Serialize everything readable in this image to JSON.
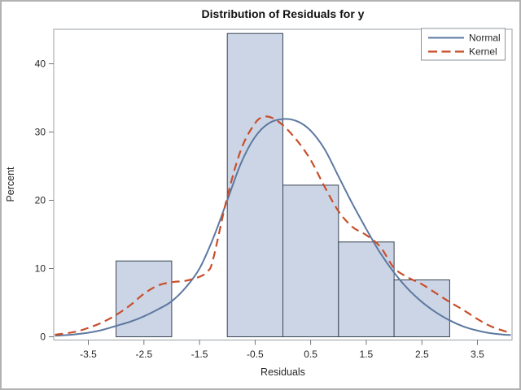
{
  "chart_data": {
    "type": "histogram",
    "title": "Distribution of Residuals for y",
    "xlabel": "Residuals",
    "ylabel": "Percent",
    "xlim": [
      -4.12,
      4.12
    ],
    "ylim": [
      0,
      45
    ],
    "grid": false,
    "legend_position": "top-right-inside",
    "x_tick_values": [
      -3.5,
      -2.5,
      -1.5,
      -0.5,
      0.5,
      1.5,
      2.5,
      3.5
    ],
    "x_tick_labels": [
      "-3.5",
      "-2.5",
      "-1.5",
      "-0.5",
      "0.5",
      "1.5",
      "2.5",
      "3.5"
    ],
    "y_tick_values": [
      0,
      10,
      20,
      30,
      40
    ],
    "y_tick_labels": [
      "0",
      "10",
      "20",
      "30",
      "40"
    ],
    "histogram_bins": [
      {
        "x0": -3,
        "x1": -2,
        "percent": 11.11
      },
      {
        "x0": -2,
        "x1": -1,
        "percent": 0
      },
      {
        "x0": -1,
        "x1": 0,
        "percent": 44.44
      },
      {
        "x0": 0,
        "x1": 1,
        "percent": 22.22
      },
      {
        "x0": 1,
        "x1": 2,
        "percent": 13.89
      },
      {
        "x0": 2,
        "x1": 3,
        "percent": 8.33
      }
    ],
    "series": [
      {
        "name": "Normal",
        "style": "solid",
        "color": "#5d78a0",
        "points": [
          [
            -4.1,
            0.15
          ],
          [
            -3.75,
            0.35
          ],
          [
            -3.5,
            0.6
          ],
          [
            -3.25,
            1.0
          ],
          [
            -3.0,
            1.6
          ],
          [
            -2.75,
            2.2
          ],
          [
            -2.5,
            3.0
          ],
          [
            -2.25,
            4.0
          ],
          [
            -2.0,
            5.2
          ],
          [
            -1.75,
            7.2
          ],
          [
            -1.5,
            10.0
          ],
          [
            -1.25,
            14.5
          ],
          [
            -1.0,
            20.0
          ],
          [
            -0.75,
            25.5
          ],
          [
            -0.5,
            29.3
          ],
          [
            -0.25,
            31.3
          ],
          [
            0,
            31.9
          ],
          [
            0.25,
            31.6
          ],
          [
            0.5,
            30.2
          ],
          [
            0.75,
            27.5
          ],
          [
            1.0,
            23.5
          ],
          [
            1.25,
            19.5
          ],
          [
            1.5,
            15.8
          ],
          [
            1.75,
            12.3
          ],
          [
            2.0,
            9.4
          ],
          [
            2.25,
            7.0
          ],
          [
            2.5,
            5.1
          ],
          [
            2.75,
            3.6
          ],
          [
            3.0,
            2.4
          ],
          [
            3.25,
            1.5
          ],
          [
            3.5,
            0.9
          ],
          [
            3.75,
            0.5
          ],
          [
            4.0,
            0.3
          ],
          [
            4.1,
            0.25
          ]
        ]
      },
      {
        "name": "Kernel",
        "style": "dashed",
        "color": "#c94e2b",
        "points": [
          [
            -4.1,
            0.3
          ],
          [
            -3.75,
            0.7
          ],
          [
            -3.5,
            1.3
          ],
          [
            -3.25,
            2.1
          ],
          [
            -3.0,
            3.2
          ],
          [
            -2.75,
            4.6
          ],
          [
            -2.5,
            6.3
          ],
          [
            -2.25,
            7.5
          ],
          [
            -2.0,
            8.0
          ],
          [
            -1.75,
            8.2
          ],
          [
            -1.5,
            8.8
          ],
          [
            -1.35,
            9.6
          ],
          [
            -1.25,
            11.5
          ],
          [
            -1.0,
            20.5
          ],
          [
            -0.75,
            27.5
          ],
          [
            -0.5,
            31.3
          ],
          [
            -0.35,
            32.2
          ],
          [
            -0.2,
            32.1
          ],
          [
            0,
            31.0
          ],
          [
            0.25,
            28.8
          ],
          [
            0.5,
            25.9
          ],
          [
            0.75,
            22.0
          ],
          [
            1.0,
            18.4
          ],
          [
            1.25,
            16.1
          ],
          [
            1.5,
            14.9
          ],
          [
            1.75,
            13.2
          ],
          [
            2.0,
            10.1
          ],
          [
            2.25,
            8.7
          ],
          [
            2.5,
            7.7
          ],
          [
            2.75,
            6.4
          ],
          [
            3.0,
            5.1
          ],
          [
            3.25,
            3.9
          ],
          [
            3.5,
            2.6
          ],
          [
            3.75,
            1.5
          ],
          [
            4.0,
            0.8
          ],
          [
            4.1,
            0.6
          ]
        ]
      }
    ]
  },
  "legend": {
    "items": [
      {
        "label": "Normal"
      },
      {
        "label": "Kernel"
      }
    ]
  },
  "colors": {
    "background": "#ffffff",
    "bar_fill": "#ccd5e5",
    "bar_edge": "#384454",
    "normal_line": "#5d78a0",
    "kernel_line": "#c94e2b",
    "plot_border": "#9aa0a5",
    "tick": "#6f7479",
    "text": "#262626",
    "title": "#111111",
    "legend_border": "#8d949b",
    "outer_border": "#b2b2b2"
  }
}
